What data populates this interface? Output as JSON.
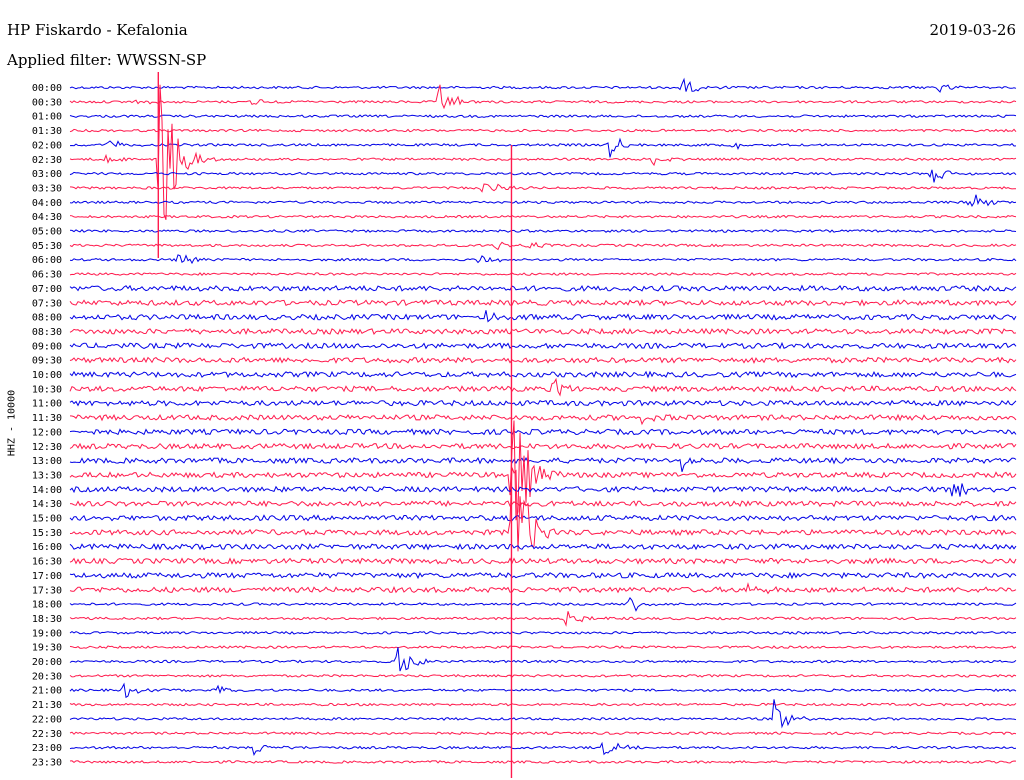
{
  "header": {
    "station": "HP Fiskardo - Kefalonia",
    "date": "2019-03-26",
    "filter": "Applied filter: WWSSN-SP"
  },
  "axis": {
    "ylabel": "HHZ - 10000"
  },
  "colors": {
    "blue": "#0000e6",
    "red": "#ff1a4d",
    "background": "#ffffff"
  },
  "chart_data": {
    "type": "line",
    "title": "HP Fiskardo - Kefalonia",
    "subtitle": "Applied filter: WWSSN-SP",
    "ylabel": "HHZ - 10000",
    "x_unit": "minutes within each 30-minute trace",
    "x_range": [
      0,
      30
    ],
    "trace_labels": [
      "00:00",
      "00:30",
      "01:00",
      "01:30",
      "02:00",
      "02:30",
      "03:00",
      "03:30",
      "04:00",
      "04:30",
      "05:00",
      "05:30",
      "06:00",
      "06:30",
      "07:00",
      "07:30",
      "08:00",
      "08:30",
      "09:00",
      "09:30",
      "10:00",
      "10:30",
      "11:00",
      "11:30",
      "12:00",
      "12:30",
      "13:00",
      "13:30",
      "14:00",
      "14:30",
      "15:00",
      "15:30",
      "16:00",
      "16:30",
      "17:00",
      "17:30",
      "18:00",
      "18:30",
      "19:00",
      "19:30",
      "20:00",
      "20:30",
      "21:00",
      "21:30",
      "22:00",
      "22:30",
      "23:00",
      "23:30"
    ],
    "trace_colors": [
      "blue",
      "red"
    ],
    "events": [
      {
        "trace": "00:00",
        "minute": 19.4,
        "amp": 10
      },
      {
        "trace": "00:00",
        "minute": 27.5,
        "amp": 6
      },
      {
        "trace": "00:30",
        "minute": 2.0,
        "amp": 4
      },
      {
        "trace": "00:30",
        "minute": 5.7,
        "amp": 4
      },
      {
        "trace": "00:30",
        "minute": 11.7,
        "amp": 20
      },
      {
        "trace": "02:00",
        "minute": 1.2,
        "amp": 6
      },
      {
        "trace": "02:00",
        "minute": 17.1,
        "amp": 14
      },
      {
        "trace": "02:00",
        "minute": 21.0,
        "amp": 8
      },
      {
        "trace": "02:30",
        "minute": 1.1,
        "amp": 5
      },
      {
        "trace": "02:30",
        "minute": 2.8,
        "amp": 120
      },
      {
        "trace": "02:30",
        "minute": 18.4,
        "amp": 8
      },
      {
        "trace": "03:00",
        "minute": 27.3,
        "amp": 14
      },
      {
        "trace": "03:30",
        "minute": 13.1,
        "amp": 9
      },
      {
        "trace": "04:00",
        "minute": 28.5,
        "amp": 12
      },
      {
        "trace": "05:30",
        "minute": 13.5,
        "amp": 6
      },
      {
        "trace": "05:30",
        "minute": 14.5,
        "amp": 5
      },
      {
        "trace": "06:00",
        "minute": 3.4,
        "amp": 8
      },
      {
        "trace": "06:00",
        "minute": 13.0,
        "amp": 7
      },
      {
        "trace": "08:00",
        "minute": 13.1,
        "amp": 7
      },
      {
        "trace": "10:30",
        "minute": 15.3,
        "amp": 14
      },
      {
        "trace": "11:30",
        "minute": 18.0,
        "amp": 7
      },
      {
        "trace": "13:00",
        "minute": 19.4,
        "amp": 10
      },
      {
        "trace": "13:30",
        "minute": 14.0,
        "amp": 95
      },
      {
        "trace": "14:00",
        "minute": 28.0,
        "amp": 15
      },
      {
        "trace": "15:30",
        "minute": 14.0,
        "amp": 110
      },
      {
        "trace": "17:30",
        "minute": 21.5,
        "amp": 7
      },
      {
        "trace": "18:00",
        "minute": 17.7,
        "amp": 12
      },
      {
        "trace": "18:30",
        "minute": 15.7,
        "amp": 10
      },
      {
        "trace": "20:00",
        "minute": 10.4,
        "amp": 20
      },
      {
        "trace": "21:00",
        "minute": 1.7,
        "amp": 9
      },
      {
        "trace": "21:00",
        "minute": 4.6,
        "amp": 8
      },
      {
        "trace": "22:00",
        "minute": 22.3,
        "amp": 22
      },
      {
        "trace": "23:00",
        "minute": 5.8,
        "amp": 9
      },
      {
        "trace": "23:00",
        "minute": 16.9,
        "amp": 10
      }
    ]
  }
}
